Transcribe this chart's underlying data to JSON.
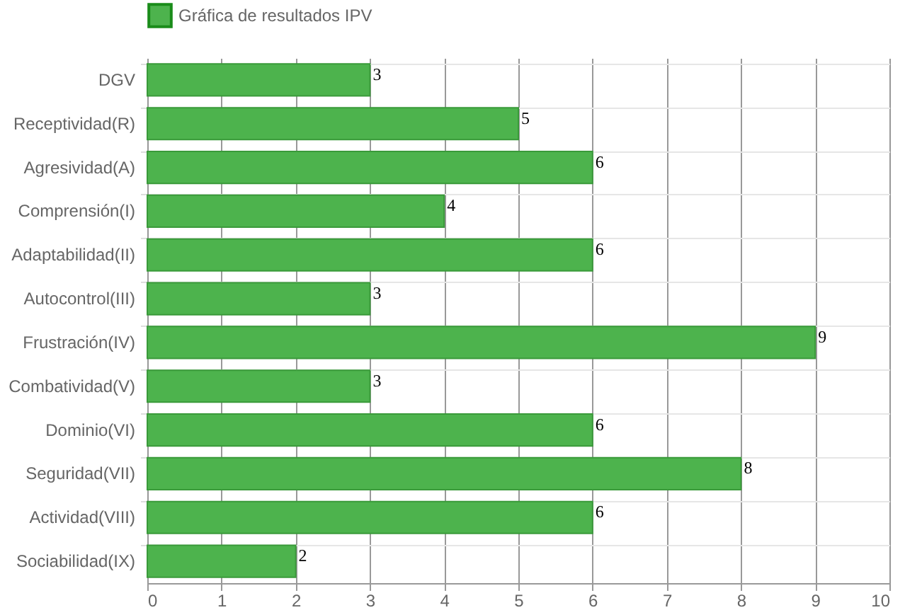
{
  "chart_data": {
    "type": "bar",
    "orientation": "horizontal",
    "categories": [
      "DGV",
      "Receptividad(R)",
      "Agresividad(A)",
      "Comprensión(I)",
      "Adaptabilidad(II)",
      "Autocontrol(III)",
      "Frustración(IV)",
      "Combatividad(V)",
      "Dominio(VI)",
      "Seguridad(VII)",
      "Actividad(VIII)",
      "Sociabilidad(IX)"
    ],
    "series": [
      {
        "name": "Gráfica de resultados IPV",
        "color": "#4db34d",
        "values": [
          3,
          5,
          6,
          4,
          6,
          3,
          9,
          3,
          6,
          8,
          6,
          2
        ]
      }
    ],
    "xlim": [
      0,
      10
    ],
    "xticks": [
      0,
      1,
      2,
      3,
      4,
      5,
      6,
      7,
      8,
      9,
      10
    ],
    "grid": true,
    "legend": "top",
    "data_labels": true
  }
}
